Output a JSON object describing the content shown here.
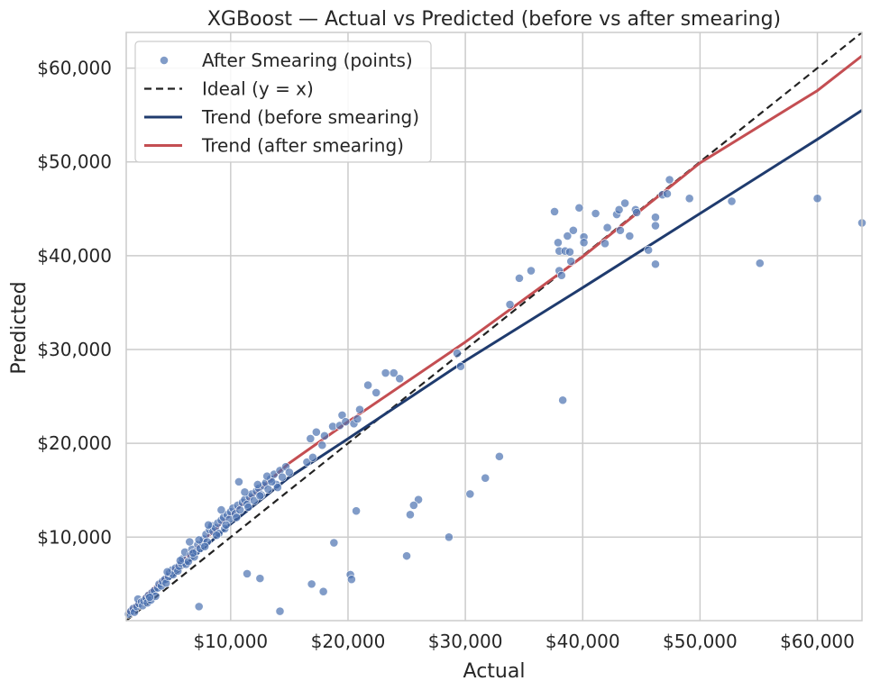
{
  "chart_data": {
    "type": "scatter",
    "title": "XGBoost — Actual vs Predicted (before vs after smearing)",
    "xlabel": "Actual",
    "ylabel": "Predicted",
    "xlim": [
      1100,
      63800
    ],
    "ylim": [
      1100,
      63800
    ],
    "xticks": [
      10000,
      20000,
      30000,
      40000,
      50000,
      60000
    ],
    "yticks": [
      10000,
      20000,
      30000,
      40000,
      50000,
      60000
    ],
    "xtick_labels": [
      "$10,000",
      "$20,000",
      "$30,000",
      "$40,000",
      "$50,000",
      "$60,000"
    ],
    "ytick_labels": [
      "$10,000",
      "$20,000",
      "$30,000",
      "$40,000",
      "$50,000",
      "$60,000"
    ],
    "grid": true,
    "legend_position": "top-left",
    "series": [
      {
        "name": "After Smearing (points)",
        "kind": "scatter",
        "color": "#4c72b0",
        "points": [
          [
            1300,
            1800
          ],
          [
            1500,
            2100
          ],
          [
            1700,
            2400
          ],
          [
            1800,
            2000
          ],
          [
            2000,
            2600
          ],
          [
            2200,
            2900
          ],
          [
            2100,
            3400
          ],
          [
            2400,
            3100
          ],
          [
            2500,
            2700
          ],
          [
            2600,
            3200
          ],
          [
            2800,
            3500
          ],
          [
            3000,
            3800
          ],
          [
            2900,
            3000
          ],
          [
            3200,
            3300
          ],
          [
            3300,
            4100
          ],
          [
            3500,
            4300
          ],
          [
            3600,
            3700
          ],
          [
            3800,
            4600
          ],
          [
            3900,
            5000
          ],
          [
            4100,
            4800
          ],
          [
            4200,
            5300
          ],
          [
            4400,
            5500
          ],
          [
            4500,
            5100
          ],
          [
            4700,
            5800
          ],
          [
            4800,
            6200
          ],
          [
            5000,
            6500
          ],
          [
            5100,
            6000
          ],
          [
            5300,
            6700
          ],
          [
            5500,
            6400
          ],
          [
            5600,
            6900
          ],
          [
            5800,
            7200
          ],
          [
            5900,
            7700
          ],
          [
            6100,
            8400
          ],
          [
            6200,
            7100
          ],
          [
            6400,
            7400
          ],
          [
            6600,
            8100
          ],
          [
            6700,
            8700
          ],
          [
            6900,
            7900
          ],
          [
            7100,
            8500
          ],
          [
            7200,
            9200
          ],
          [
            7400,
            8800
          ],
          [
            7600,
            9400
          ],
          [
            7700,
            9800
          ],
          [
            7900,
            10300
          ],
          [
            8000,
            9500
          ],
          [
            8200,
            10800
          ],
          [
            8400,
            11200
          ],
          [
            8500,
            10600
          ],
          [
            8700,
            11000
          ],
          [
            8900,
            11500
          ],
          [
            9000,
            10400
          ],
          [
            9200,
            11800
          ],
          [
            9400,
            12100
          ],
          [
            9500,
            10900
          ],
          [
            9700,
            12400
          ],
          [
            9900,
            11900
          ],
          [
            10000,
            12700
          ],
          [
            10200,
            13100
          ],
          [
            10400,
            12500
          ],
          [
            10600,
            13400
          ],
          [
            10800,
            12900
          ],
          [
            11000,
            13700
          ],
          [
            11200,
            14000
          ],
          [
            11400,
            13500
          ],
          [
            11600,
            14300
          ],
          [
            11800,
            14600
          ],
          [
            12000,
            13900
          ],
          [
            12200,
            14900
          ],
          [
            12400,
            15200
          ],
          [
            12600,
            14500
          ],
          [
            12800,
            15500
          ],
          [
            13000,
            15800
          ],
          [
            13200,
            15100
          ],
          [
            13400,
            16200
          ],
          [
            13700,
            16700
          ],
          [
            13900,
            15600
          ],
          [
            14200,
            17100
          ],
          [
            14400,
            16400
          ],
          [
            14700,
            17500
          ],
          [
            15000,
            16900
          ],
          [
            3100,
            3600
          ],
          [
            4600,
            6300
          ],
          [
            5700,
            7500
          ],
          [
            6800,
            8300
          ],
          [
            7800,
            9000
          ],
          [
            8800,
            10200
          ],
          [
            9600,
            11300
          ],
          [
            10500,
            12100
          ],
          [
            11500,
            13200
          ],
          [
            12500,
            14400
          ],
          [
            13500,
            15900
          ],
          [
            14000,
            15300
          ],
          [
            10700,
            15900
          ],
          [
            11200,
            14800
          ],
          [
            12300,
            15600
          ],
          [
            13100,
            16500
          ],
          [
            9200,
            12900
          ],
          [
            8100,
            11300
          ],
          [
            6500,
            9500
          ],
          [
            7300,
            9700
          ],
          [
            16500,
            18000
          ],
          [
            17000,
            18500
          ],
          [
            16800,
            20500
          ],
          [
            17300,
            21200
          ],
          [
            18000,
            20800
          ],
          [
            18700,
            21800
          ],
          [
            17800,
            19800
          ],
          [
            19300,
            21900
          ],
          [
            19500,
            23000
          ],
          [
            19800,
            22300
          ],
          [
            20500,
            22100
          ],
          [
            20800,
            22600
          ],
          [
            21000,
            23600
          ],
          [
            21700,
            26200
          ],
          [
            22400,
            25400
          ],
          [
            23200,
            27500
          ],
          [
            23900,
            27500
          ],
          [
            24400,
            26900
          ],
          [
            29300,
            29600
          ],
          [
            29600,
            28200
          ],
          [
            30400,
            14600
          ],
          [
            31700,
            16300
          ],
          [
            32900,
            18600
          ],
          [
            28600,
            10000
          ],
          [
            26000,
            14000
          ],
          [
            25600,
            13400
          ],
          [
            25300,
            12400
          ],
          [
            25000,
            8000
          ],
          [
            20700,
            12800
          ],
          [
            18800,
            9400
          ],
          [
            20200,
            6000
          ],
          [
            20300,
            5500
          ],
          [
            17900,
            4200
          ],
          [
            16900,
            5000
          ],
          [
            12500,
            5600
          ],
          [
            11400,
            6100
          ],
          [
            7300,
            2600
          ],
          [
            14200,
            2100
          ],
          [
            33800,
            34800
          ],
          [
            34600,
            37600
          ],
          [
            35600,
            38400
          ],
          [
            37600,
            44700
          ],
          [
            37900,
            41400
          ],
          [
            38000,
            40500
          ],
          [
            38000,
            38400
          ],
          [
            38200,
            37900
          ],
          [
            38300,
            24600
          ],
          [
            38500,
            40500
          ],
          [
            38700,
            42100
          ],
          [
            38900,
            40400
          ],
          [
            39000,
            39400
          ],
          [
            39200,
            42700
          ],
          [
            39700,
            45100
          ],
          [
            40100,
            42000
          ],
          [
            40100,
            41400
          ],
          [
            41100,
            44500
          ],
          [
            41900,
            41300
          ],
          [
            42100,
            43000
          ],
          [
            42900,
            44400
          ],
          [
            43100,
            44900
          ],
          [
            43200,
            42700
          ],
          [
            43600,
            45600
          ],
          [
            44000,
            42100
          ],
          [
            44500,
            44900
          ],
          [
            44600,
            44600
          ],
          [
            45600,
            40600
          ],
          [
            46200,
            44100
          ],
          [
            46200,
            43200
          ],
          [
            46200,
            39100
          ],
          [
            46800,
            46500
          ],
          [
            47200,
            46600
          ],
          [
            47400,
            48100
          ],
          [
            49100,
            46100
          ],
          [
            52700,
            45800
          ],
          [
            55100,
            39200
          ],
          [
            60000,
            46100
          ],
          [
            63800,
            43500
          ]
        ]
      },
      {
        "name": "Ideal (y = x)",
        "kind": "line",
        "dashed": true,
        "color": "#222222",
        "points": [
          [
            1100,
            1100
          ],
          [
            63800,
            63800
          ]
        ]
      },
      {
        "name": "Trend (before smearing)",
        "kind": "line",
        "color": "#1f3b6e",
        "points": [
          [
            1100,
            1700
          ],
          [
            5000,
            5800
          ],
          [
            10000,
            11400
          ],
          [
            15000,
            16400
          ],
          [
            20000,
            20500
          ],
          [
            30000,
            28800
          ],
          [
            40000,
            36600
          ],
          [
            50000,
            44500
          ],
          [
            60000,
            52400
          ],
          [
            63800,
            55500
          ]
        ]
      },
      {
        "name": "Trend (after smearing)",
        "kind": "line",
        "color": "#c44e52",
        "points": [
          [
            1100,
            1900
          ],
          [
            5000,
            6400
          ],
          [
            10000,
            12400
          ],
          [
            15000,
            17900
          ],
          [
            20000,
            22300
          ],
          [
            30000,
            30800
          ],
          [
            40000,
            39900
          ],
          [
            50000,
            49900
          ],
          [
            60000,
            57600
          ],
          [
            63800,
            61300
          ]
        ]
      }
    ]
  }
}
